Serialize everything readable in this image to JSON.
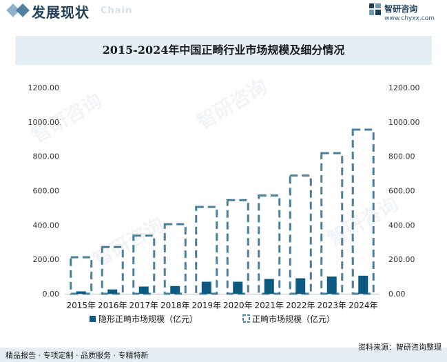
{
  "header": {
    "section_title": "发展现状",
    "section_sub": "Chain",
    "brand_name": "智研咨询",
    "brand_url": "www.chyxx.com"
  },
  "watermark_text": "智研咨询",
  "chart_data": {
    "type": "bar",
    "title": "2015-2024年中国正畸行业市场规模及细分情况",
    "categories": [
      "2015年",
      "2016年",
      "2017年",
      "2018年",
      "2019年",
      "2020年",
      "2021年",
      "2022年",
      "2023年",
      "2024年"
    ],
    "series": [
      {
        "name": "隐形正畸市场规模（亿元）",
        "values": [
          14,
          25,
          42,
          45,
          70,
          70,
          86,
          90,
          100,
          105
        ],
        "axis": "left",
        "style": "solid",
        "color": "#0d5a80"
      },
      {
        "name": "正畸市场规模（亿元）",
        "values": [
          212,
          272,
          338,
          405,
          505,
          545,
          572,
          688,
          818,
          955
        ],
        "axis": "right",
        "style": "dashed-outline",
        "color": "#4a7f99"
      }
    ],
    "y_ticks": [
      "0.00",
      "200.00",
      "400.00",
      "600.00",
      "800.00",
      "1000.00",
      "1200.00"
    ],
    "ylim": [
      0,
      1200
    ],
    "y2lim": [
      0,
      1200
    ],
    "legend_position": "bottom",
    "grid": false
  },
  "footer": {
    "left": "精品报告 · 专项定制 · 品质服务 · 专精特新",
    "source": "资料来源：智研咨询整理"
  }
}
